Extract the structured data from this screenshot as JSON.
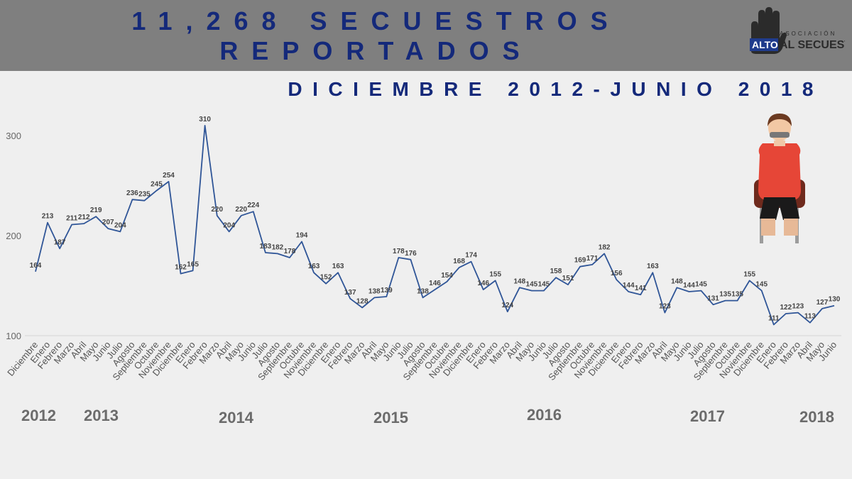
{
  "header": {
    "title_line1": "11,268 SECUESTROS",
    "title_line2": "REPORTADOS",
    "subtitle": "DICIEMBRE 2012-JUNIO 2018"
  },
  "logo": {
    "word_alto": "ALTO",
    "word_secuestro": "AL SECUESTRO",
    "word_asociacion": "ASOCIACIÓN"
  },
  "colors": {
    "header_bg": "#7f7f7f",
    "title": "#14297a",
    "line": "#2f5597",
    "background": "#efefef"
  },
  "years": [
    "2012",
    "2013",
    "2014",
    "2015",
    "2016",
    "2017",
    "2018"
  ],
  "chart_data": {
    "type": "line",
    "y_ticks": [
      100,
      200,
      300
    ],
    "ylim": [
      100,
      330
    ],
    "grid": "horizontal at 100",
    "categories": [
      "Diciembre",
      "Enero",
      "Febrero",
      "Marzo",
      "Abril",
      "Mayo",
      "Junio",
      "Julio",
      "Agosto",
      "Septiembre",
      "Octubre",
      "Noviembre",
      "Diciembre",
      "Enero",
      "Febrero",
      "Marzo",
      "Abril",
      "Mayo",
      "Junio",
      "Julio",
      "Agosto",
      "Septiembre",
      "Octubre",
      "Noviembre",
      "Diciembre",
      "Enero",
      "Febrero",
      "Marzo",
      "Abril",
      "Mayo",
      "Junio",
      "Julio",
      "Agosto",
      "Septiembre",
      "Octubre",
      "Noviembre",
      "Diciembre",
      "Enero",
      "Febrero",
      "Marzo",
      "Abril",
      "Mayo",
      "Junio",
      "Julio",
      "Agosto",
      "Septiembre",
      "Octubre",
      "Noviembre",
      "Diciembre",
      "Enero",
      "Febrero",
      "Marzo",
      "Abril",
      "Mayo",
      "Junio",
      "Julio",
      "Agosto",
      "Septiembre",
      "Octubre",
      "Noviembre",
      "Diciembre",
      "Enero",
      "Febrero",
      "Marzo",
      "Abril",
      "Mayo",
      "Junio"
    ],
    "values": [
      164,
      213,
      187,
      211,
      212,
      219,
      207,
      204,
      236,
      235,
      245,
      254,
      162,
      165,
      310,
      220,
      204,
      220,
      224,
      183,
      182,
      178,
      194,
      163,
      152,
      163,
      137,
      128,
      138,
      139,
      178,
      176,
      138,
      146,
      154,
      168,
      174,
      146,
      155,
      124,
      148,
      145,
      145,
      158,
      151,
      169,
      171,
      182,
      156,
      144,
      141,
      163,
      123,
      148,
      144,
      145,
      131,
      135,
      135,
      155,
      145,
      111,
      122,
      123,
      113,
      127,
      130
    ]
  }
}
